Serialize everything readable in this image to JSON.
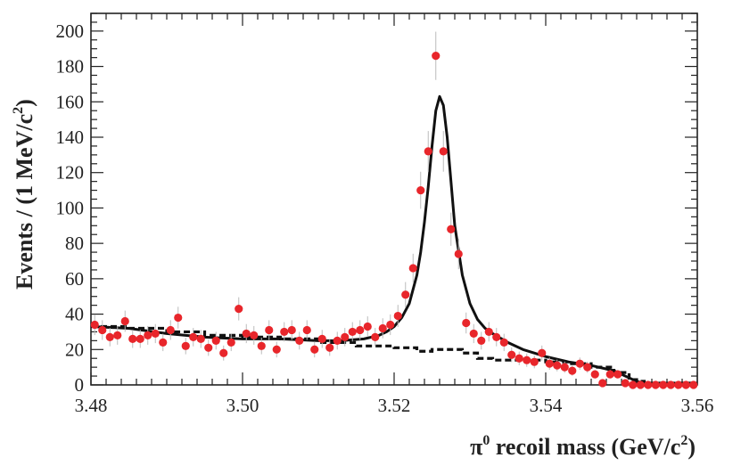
{
  "chart_data": {
    "type": "scatter",
    "xlabel": "π⁰ recoil mass (GeV/c²)",
    "xlabel_parts": {
      "symbol": "π",
      "sup": "0",
      "rest": " recoil mass (GeV/c",
      "rest_sup": "2",
      "close": ")"
    },
    "ylabel": "Events  / (1 MeV/c²)",
    "ylabel_parts": {
      "main": "Events  / (1 MeV/c",
      "sup": "2",
      "close": ")"
    },
    "xlim": [
      3.48,
      3.56
    ],
    "ylim": [
      0,
      210
    ],
    "x_ticks": [
      "3.48",
      "3.50",
      "3.52",
      "3.54",
      "3.56"
    ],
    "y_ticks": [
      "0",
      "20",
      "40",
      "60",
      "80",
      "100",
      "120",
      "140",
      "160",
      "180",
      "200"
    ],
    "colors": {
      "data_points": "#e8262b",
      "fit": "#111111",
      "background": "#111111",
      "frame": "#222222"
    },
    "series": [
      {
        "role": "data",
        "marker": "circle",
        "x": [
          3.4805,
          3.4815,
          3.4825,
          3.4835,
          3.4845,
          3.4855,
          3.4865,
          3.4875,
          3.4885,
          3.4895,
          3.4905,
          3.4915,
          3.4925,
          3.4935,
          3.4945,
          3.4955,
          3.4965,
          3.4975,
          3.4985,
          3.4995,
          3.5005,
          3.5015,
          3.5025,
          3.5035,
          3.5045,
          3.5055,
          3.5065,
          3.5075,
          3.5085,
          3.5095,
          3.5105,
          3.5115,
          3.5125,
          3.5135,
          3.5145,
          3.5155,
          3.5165,
          3.5175,
          3.5185,
          3.5195,
          3.5205,
          3.5215,
          3.5225,
          3.5235,
          3.5245,
          3.5255,
          3.5265,
          3.5275,
          3.5285,
          3.5295,
          3.5305,
          3.5315,
          3.5325,
          3.5335,
          3.5345,
          3.5355,
          3.5365,
          3.5375,
          3.5385,
          3.5395,
          3.5405,
          3.5415,
          3.5425,
          3.5435,
          3.5445,
          3.5455,
          3.5465,
          3.5475,
          3.5485,
          3.5495,
          3.5505,
          3.5515,
          3.5525,
          3.5535,
          3.5545,
          3.5555,
          3.5565,
          3.5575,
          3.5585,
          3.5595
        ],
        "y": [
          34,
          31,
          27,
          28,
          36,
          26,
          26,
          28,
          29,
          24,
          31,
          38,
          22,
          27,
          26,
          21,
          25,
          18,
          24,
          43,
          29,
          28,
          22,
          31,
          20,
          30,
          31,
          25,
          31,
          20,
          26,
          21,
          25,
          27,
          30,
          31,
          33,
          27,
          32,
          34,
          39,
          51,
          66,
          110,
          132,
          186,
          132,
          88,
          74,
          35,
          29,
          25,
          30,
          27,
          24,
          17,
          15,
          14,
          13,
          18,
          12,
          11,
          10,
          8,
          12,
          10,
          6,
          1,
          6,
          6,
          1,
          0,
          0,
          0,
          0,
          0,
          0,
          0,
          0,
          0
        ]
      },
      {
        "role": "total_fit",
        "line": "solid",
        "x": [
          3.48,
          3.485,
          3.49,
          3.495,
          3.5,
          3.505,
          3.51,
          3.513,
          3.516,
          3.518,
          3.519,
          3.52,
          3.521,
          3.522,
          3.523,
          3.5235,
          3.524,
          3.5245,
          3.525,
          3.5255,
          3.526,
          3.5265,
          3.527,
          3.5275,
          3.528,
          3.529,
          3.53,
          3.531,
          3.532,
          3.533,
          3.535,
          3.537,
          3.54,
          3.543,
          3.546,
          3.549,
          3.551,
          3.552,
          3.553,
          3.556,
          3.56
        ],
        "y": [
          33,
          32,
          29,
          27,
          26,
          26,
          25,
          25,
          26,
          28,
          30,
          33,
          38,
          46,
          62,
          75,
          92,
          112,
          135,
          155,
          163,
          158,
          140,
          115,
          90,
          62,
          46,
          37,
          32,
          29,
          24,
          20,
          16,
          13,
          11,
          8,
          4,
          2,
          1,
          1,
          1
        ]
      },
      {
        "role": "background",
        "line": "dashed-step",
        "x": [
          3.48,
          3.485,
          3.49,
          3.495,
          3.5,
          3.505,
          3.51,
          3.515,
          3.52,
          3.523,
          3.525,
          3.527,
          3.529,
          3.531,
          3.533,
          3.535,
          3.537,
          3.54,
          3.543,
          3.546,
          3.549,
          3.551,
          3.552,
          3.553,
          3.556,
          3.56
        ],
        "y": [
          33,
          32,
          30,
          28,
          27,
          26,
          24,
          22,
          21,
          19,
          20,
          20,
          18,
          15,
          14,
          14,
          14,
          13,
          12,
          10,
          7,
          3,
          2,
          1,
          1,
          1
        ]
      }
    ]
  }
}
